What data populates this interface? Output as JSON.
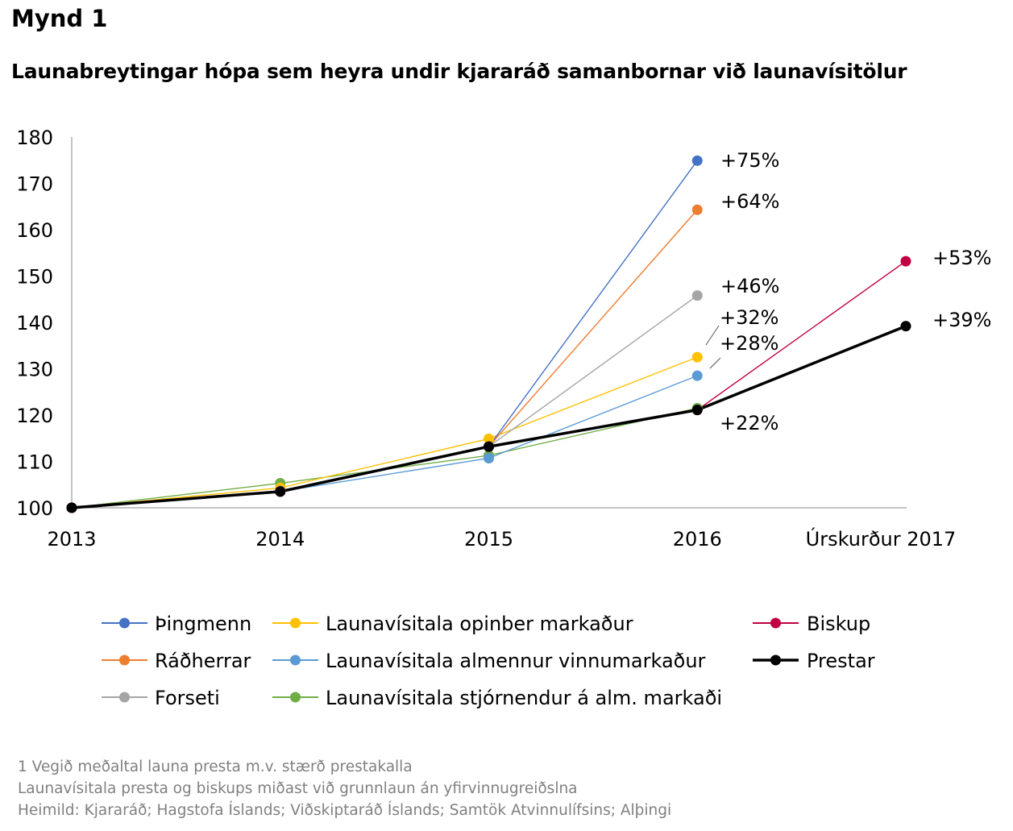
{
  "figure_label": "Mynd 1",
  "title": "Launabreytingar hópa sem heyra undir kjararáð samanbornar við launavísitölur",
  "chart_data": {
    "type": "line",
    "categories": [
      "2013",
      "2014",
      "2015",
      "2016",
      "Úrskurður 2017"
    ],
    "ylim": [
      100,
      180
    ],
    "yticks": [
      100,
      110,
      120,
      130,
      140,
      150,
      160,
      170,
      180
    ],
    "grid": false,
    "legend_position": "bottom",
    "series": [
      {
        "name": "Þingmenn",
        "color": "#4472C4",
        "values": [
          100,
          103.6,
          113.2,
          174.9,
          null
        ],
        "label": "+75%"
      },
      {
        "name": "Ráðherrar",
        "color": "#ED7D31",
        "values": [
          100,
          103.6,
          113.2,
          164.3,
          null
        ],
        "label": "+64%"
      },
      {
        "name": "Forseti",
        "color": "#A5A5A5",
        "values": [
          100,
          103.6,
          113.2,
          145.8,
          null
        ],
        "label": "+46%"
      },
      {
        "name": "Launavísitala opinber markaður",
        "color": "#FFC000",
        "values": [
          100,
          104.3,
          114.9,
          132.5,
          null
        ],
        "label": "+32%"
      },
      {
        "name": "Launavísitala almennur vinnumarkaður",
        "color": "#5B9BD5",
        "values": [
          100,
          103.5,
          110.7,
          128.5,
          null
        ],
        "label": "+28%"
      },
      {
        "name": "Launavísitala stjórnendur á alm. markaði",
        "color": "#70AD47",
        "values": [
          100,
          105.3,
          111.3,
          121.5,
          null
        ],
        "label": ""
      },
      {
        "name": "Biskup",
        "color": "#C00040",
        "values": [
          100,
          103.5,
          113.2,
          121.1,
          153.2
        ],
        "label": "+53%"
      },
      {
        "name": "Prestar",
        "color": "#000000",
        "values": [
          100,
          103.5,
          113.2,
          121.1,
          139.2
        ],
        "label": "+39%"
      }
    ],
    "annotations": [
      "+22%"
    ]
  },
  "footnotes": [
    "1 Vegið meðaltal launa presta m.v. stærð prestakalla",
    "Launavísitala presta og biskups miðast við grunnlaun án yfirvinnugreiðslna",
    "Heimild: Kjararáð; Hagstofa Íslands; Viðskiptaráð Íslands; Samtök Atvinnulífsins; Alþingi"
  ]
}
